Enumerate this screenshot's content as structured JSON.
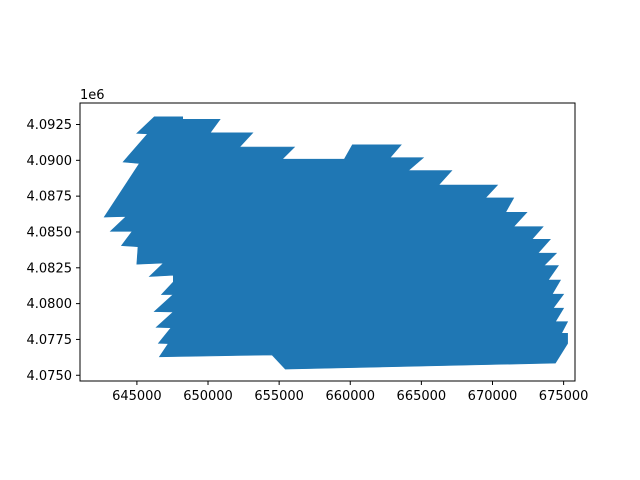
{
  "chart_data": {
    "type": "area",
    "title": "",
    "xlabel": "",
    "ylabel": "",
    "y_offset_label": "1e6",
    "xlim": [
      641000,
      675800
    ],
    "ylim": [
      4074600,
      4094000
    ],
    "x_ticks": [
      645000,
      650000,
      655000,
      660000,
      665000,
      670000,
      675000
    ],
    "x_tick_labels": [
      "645000",
      "650000",
      "655000",
      "660000",
      "665000",
      "670000",
      "675000"
    ],
    "y_ticks": [
      4075000,
      4077500,
      4080000,
      4082500,
      4085000,
      4087500,
      4090000,
      4092500
    ],
    "y_tick_labels": [
      "4.0750",
      "4.0775",
      "4.0800",
      "4.0825",
      "4.0850",
      "4.0875",
      "4.0900",
      "4.0925"
    ],
    "fill_color": "#1f77b4",
    "grid": false,
    "legend": "none",
    "polygon": [
      [
        646220,
        4093040
      ],
      [
        648220,
        4093040
      ],
      [
        648220,
        4092860
      ],
      [
        650850,
        4092860
      ],
      [
        650150,
        4091920
      ],
      [
        653150,
        4091920
      ],
      [
        652220,
        4090920
      ],
      [
        656080,
        4090920
      ],
      [
        655220,
        4090080
      ],
      [
        659580,
        4090080
      ],
      [
        660150,
        4091080
      ],
      [
        663580,
        4091080
      ],
      [
        662800,
        4090180
      ],
      [
        665140,
        4090180
      ],
      [
        664080,
        4089280
      ],
      [
        667140,
        4089280
      ],
      [
        666220,
        4088280
      ],
      [
        670350,
        4088280
      ],
      [
        669510,
        4087380
      ],
      [
        671490,
        4087380
      ],
      [
        670920,
        4086370
      ],
      [
        672420,
        4086370
      ],
      [
        671490,
        4085370
      ],
      [
        673560,
        4085370
      ],
      [
        672780,
        4084490
      ],
      [
        674060,
        4084490
      ],
      [
        673200,
        4083520
      ],
      [
        674490,
        4083520
      ],
      [
        673630,
        4082650
      ],
      [
        674630,
        4082650
      ],
      [
        673920,
        4081650
      ],
      [
        674780,
        4081650
      ],
      [
        674200,
        4080660
      ],
      [
        675000,
        4080660
      ],
      [
        674270,
        4079680
      ],
      [
        675000,
        4079680
      ],
      [
        674420,
        4078740
      ],
      [
        675280,
        4078740
      ],
      [
        674850,
        4077930
      ],
      [
        675280,
        4077930
      ],
      [
        675280,
        4077220
      ],
      [
        674420,
        4075850
      ],
      [
        655430,
        4075430
      ],
      [
        654500,
        4076420
      ],
      [
        646580,
        4076290
      ],
      [
        647210,
        4077210
      ],
      [
        646510,
        4077230
      ],
      [
        647400,
        4078320
      ],
      [
        646360,
        4078340
      ],
      [
        647560,
        4079420
      ],
      [
        646220,
        4079440
      ],
      [
        647560,
        4080640
      ],
      [
        646730,
        4080630
      ],
      [
        647560,
        4081510
      ],
      [
        647560,
        4081980
      ],
      [
        645880,
        4081890
      ],
      [
        646860,
        4082830
      ],
      [
        644990,
        4082750
      ],
      [
        645080,
        4083970
      ],
      [
        643920,
        4084050
      ],
      [
        644670,
        4085050
      ],
      [
        643140,
        4085050
      ],
      [
        644240,
        4086080
      ],
      [
        642700,
        4086040
      ],
      [
        645170,
        4089780
      ],
      [
        644030,
        4089880
      ],
      [
        645750,
        4091850
      ],
      [
        644990,
        4091880
      ]
    ]
  }
}
